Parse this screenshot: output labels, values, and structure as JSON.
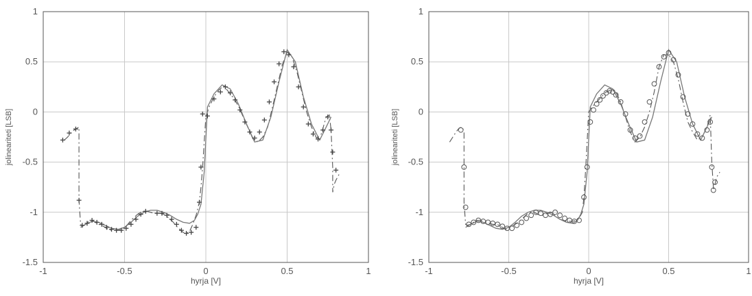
{
  "chart_data": [
    {
      "type": "line",
      "title": "",
      "xlabel": "hyrja  [V]",
      "ylabel": "jolineariteti  [LSB]",
      "xlim": [
        -1,
        1
      ],
      "ylim": [
        -1.5,
        1
      ],
      "xticks": [
        -1,
        -0.5,
        0,
        0.5,
        1
      ],
      "yticks": [
        -1.5,
        -1,
        -0.5,
        0,
        0.5,
        1
      ],
      "xtick_labels": [
        "-1",
        "-0.5",
        "0",
        "0.5",
        "1"
      ],
      "ytick_labels": [
        "-1.5",
        "-1",
        "-0.5",
        "0",
        "0.5",
        "1"
      ],
      "grid": true,
      "marker": "plus",
      "series": [
        {
          "style": "dash-dot",
          "x": [
            -0.87,
            -0.85,
            -0.83,
            -0.81,
            -0.79,
            -0.78,
            -0.78,
            -0.77,
            -0.76,
            -0.74,
            -0.72,
            -0.7,
            -0.68,
            -0.66,
            -0.64,
            -0.62,
            -0.6,
            -0.58,
            -0.56,
            -0.54,
            -0.52,
            -0.5,
            -0.48,
            -0.46,
            -0.44,
            -0.42,
            -0.4,
            -0.38,
            -0.36,
            -0.34,
            -0.32,
            -0.3,
            -0.28,
            -0.26,
            -0.24,
            -0.22,
            -0.2,
            -0.18,
            -0.16,
            -0.14,
            -0.12,
            -0.1,
            -0.08,
            -0.06,
            -0.04,
            -0.03,
            -0.02,
            -0.01,
            0.0,
            0.02,
            0.05,
            0.08,
            0.11,
            0.14,
            0.17,
            0.2,
            0.23,
            0.26,
            0.29,
            0.32,
            0.35,
            0.38,
            0.41,
            0.44,
            0.47,
            0.5,
            0.53,
            0.56,
            0.59,
            0.62,
            0.65,
            0.68,
            0.71,
            0.74,
            0.76,
            0.77,
            0.78,
            0.78,
            0.79,
            0.8,
            0.82
          ],
          "y": [
            -0.28,
            -0.25,
            -0.21,
            -0.18,
            -0.16,
            -0.15,
            -0.88,
            -1.12,
            -1.14,
            -1.12,
            -1.09,
            -1.08,
            -1.1,
            -1.12,
            -1.13,
            -1.15,
            -1.17,
            -1.18,
            -1.18,
            -1.18,
            -1.17,
            -1.15,
            -1.12,
            -1.08,
            -1.05,
            -1.02,
            -1.0,
            -0.99,
            -0.99,
            -1.0,
            -1.01,
            -1.01,
            -1.01,
            -1.02,
            -1.04,
            -1.07,
            -1.1,
            -1.14,
            -1.17,
            -1.2,
            -1.21,
            -1.19,
            -1.12,
            -1.03,
            -0.9,
            -0.75,
            -0.55,
            -0.3,
            -0.05,
            0.05,
            0.15,
            0.22,
            0.26,
            0.2,
            0.14,
            0.06,
            -0.05,
            -0.16,
            -0.27,
            -0.3,
            -0.25,
            -0.15,
            0.05,
            0.26,
            0.47,
            0.6,
            0.55,
            0.4,
            0.2,
            0.0,
            -0.15,
            -0.26,
            -0.22,
            -0.05,
            -0.03,
            -0.18,
            -0.55,
            -0.8,
            -0.72,
            -0.68,
            -0.62
          ]
        },
        {
          "style": "solid",
          "x": [
            -0.77,
            -0.74,
            -0.7,
            -0.66,
            -0.62,
            -0.58,
            -0.54,
            -0.5,
            -0.46,
            -0.42,
            -0.38,
            -0.34,
            -0.3,
            -0.26,
            -0.22,
            -0.18,
            -0.14,
            -0.1,
            -0.07,
            -0.05,
            -0.03,
            -0.01,
            0.01,
            0.05,
            0.1,
            0.15,
            0.2,
            0.25,
            0.3,
            0.35,
            0.4,
            0.45,
            0.5,
            0.55,
            0.6,
            0.65,
            0.7,
            0.74,
            0.77
          ],
          "y": [
            -1.15,
            -1.12,
            -1.09,
            -1.1,
            -1.13,
            -1.16,
            -1.17,
            -1.15,
            -1.1,
            -1.04,
            -1.0,
            -0.98,
            -0.98,
            -1.0,
            -1.03,
            -1.07,
            -1.1,
            -1.11,
            -1.08,
            -1.02,
            -0.92,
            -0.6,
            0.05,
            0.18,
            0.27,
            0.23,
            0.08,
            -0.12,
            -0.3,
            -0.28,
            -0.05,
            0.3,
            0.62,
            0.5,
            0.15,
            -0.12,
            -0.28,
            -0.15,
            -0.05
          ]
        }
      ],
      "markers": {
        "x": [
          -0.88,
          -0.84,
          -0.8,
          -0.78,
          -0.76,
          -0.73,
          -0.7,
          -0.67,
          -0.64,
          -0.61,
          -0.58,
          -0.55,
          -0.52,
          -0.49,
          -0.46,
          -0.43,
          -0.4,
          -0.37,
          -0.3,
          -0.27,
          -0.24,
          -0.21,
          -0.18,
          -0.15,
          -0.12,
          -0.09,
          -0.06,
          -0.04,
          -0.03,
          -0.02,
          0.01,
          0.05,
          0.09,
          0.12,
          0.15,
          0.18,
          0.21,
          0.24,
          0.27,
          0.3,
          0.33,
          0.36,
          0.39,
          0.42,
          0.45,
          0.48,
          0.51,
          0.54,
          0.57,
          0.6,
          0.63,
          0.66,
          0.69,
          0.72,
          0.75,
          0.77,
          0.78,
          0.8
        ],
        "y": [
          -0.28,
          -0.21,
          -0.17,
          -0.88,
          -1.13,
          -1.11,
          -1.08,
          -1.1,
          -1.12,
          -1.15,
          -1.17,
          -1.18,
          -1.18,
          -1.16,
          -1.12,
          -1.07,
          -1.02,
          -0.99,
          -1.01,
          -1.01,
          -1.03,
          -1.07,
          -1.12,
          -1.18,
          -1.21,
          -1.2,
          -1.15,
          -0.9,
          -0.55,
          -0.02,
          -0.04,
          0.13,
          0.2,
          0.25,
          0.19,
          0.12,
          0.02,
          -0.1,
          -0.2,
          -0.26,
          -0.2,
          -0.08,
          0.1,
          0.3,
          0.48,
          0.6,
          0.57,
          0.45,
          0.25,
          0.05,
          -0.12,
          -0.22,
          -0.27,
          -0.18,
          -0.05,
          -0.18,
          -0.4,
          -0.58
        ]
      }
    },
    {
      "type": "line",
      "title": "",
      "xlabel": "hyrja  [V]",
      "ylabel": "jolineariteti  [LSB]",
      "xlim": [
        -1,
        1
      ],
      "ylim": [
        -1.5,
        1
      ],
      "xticks": [
        -1,
        -0.5,
        0,
        0.5,
        1
      ],
      "yticks": [
        -1.5,
        -1,
        -0.5,
        0,
        0.5,
        1
      ],
      "xtick_labels": [
        "-1",
        "-0.5",
        "0",
        "0.5",
        "1"
      ],
      "ytick_labels": [
        "-1.5",
        "-1",
        "-0.5",
        "0",
        "0.5",
        "1"
      ],
      "grid": true,
      "marker": "circle",
      "series": [
        {
          "style": "dash-dot",
          "x": [
            -0.87,
            -0.85,
            -0.83,
            -0.81,
            -0.79,
            -0.78,
            -0.78,
            -0.77,
            -0.76,
            -0.74,
            -0.72,
            -0.7,
            -0.68,
            -0.66,
            -0.64,
            -0.62,
            -0.6,
            -0.58,
            -0.56,
            -0.54,
            -0.52,
            -0.5,
            -0.48,
            -0.46,
            -0.44,
            -0.42,
            -0.4,
            -0.38,
            -0.36,
            -0.34,
            -0.32,
            -0.3,
            -0.28,
            -0.26,
            -0.24,
            -0.22,
            -0.2,
            -0.18,
            -0.16,
            -0.14,
            -0.12,
            -0.1,
            -0.08,
            -0.06,
            -0.04,
            -0.03,
            -0.02,
            -0.01,
            0.0,
            0.02,
            0.05,
            0.08,
            0.11,
            0.14,
            0.17,
            0.2,
            0.23,
            0.26,
            0.29,
            0.32,
            0.35,
            0.38,
            0.41,
            0.44,
            0.47,
            0.5,
            0.53,
            0.56,
            0.59,
            0.62,
            0.65,
            0.68,
            0.71,
            0.74,
            0.76,
            0.77,
            0.78,
            0.78,
            0.79,
            0.8,
            0.82
          ],
          "y": [
            -0.3,
            -0.25,
            -0.2,
            -0.16,
            -0.15,
            -0.2,
            -0.9,
            -1.12,
            -1.13,
            -1.12,
            -1.1,
            -1.08,
            -1.08,
            -1.09,
            -1.1,
            -1.11,
            -1.12,
            -1.12,
            -1.13,
            -1.15,
            -1.17,
            -1.16,
            -1.14,
            -1.12,
            -1.1,
            -1.07,
            -1.04,
            -1.01,
            -1.0,
            -1.0,
            -1.02,
            -1.03,
            -1.03,
            -1.01,
            -1.0,
            -1.02,
            -1.05,
            -1.07,
            -1.08,
            -1.09,
            -1.09,
            -1.09,
            -1.08,
            -1.06,
            -1.0,
            -0.85,
            -0.6,
            -0.3,
            0.0,
            0.05,
            0.1,
            0.15,
            0.2,
            0.22,
            0.2,
            0.1,
            -0.05,
            -0.2,
            -0.3,
            -0.25,
            -0.15,
            0.0,
            0.2,
            0.45,
            0.57,
            0.57,
            0.5,
            0.33,
            0.1,
            -0.1,
            -0.2,
            -0.28,
            -0.25,
            -0.15,
            -0.03,
            -0.5,
            -0.75,
            -0.78,
            -0.72,
            -0.65,
            -0.6
          ]
        },
        {
          "style": "solid",
          "x": [
            -0.77,
            -0.74,
            -0.7,
            -0.66,
            -0.62,
            -0.58,
            -0.54,
            -0.5,
            -0.46,
            -0.42,
            -0.38,
            -0.34,
            -0.3,
            -0.26,
            -0.22,
            -0.18,
            -0.14,
            -0.1,
            -0.07,
            -0.05,
            -0.03,
            -0.01,
            0.01,
            0.05,
            0.1,
            0.15,
            0.2,
            0.25,
            0.3,
            0.35,
            0.4,
            0.45,
            0.5,
            0.55,
            0.6,
            0.65,
            0.7,
            0.74,
            0.77
          ],
          "y": [
            -1.15,
            -1.12,
            -1.09,
            -1.1,
            -1.13,
            -1.16,
            -1.17,
            -1.15,
            -1.1,
            -1.04,
            -1.0,
            -0.98,
            -0.98,
            -1.0,
            -1.03,
            -1.07,
            -1.1,
            -1.11,
            -1.08,
            -1.02,
            -0.92,
            -0.6,
            0.05,
            0.18,
            0.27,
            0.23,
            0.08,
            -0.12,
            -0.3,
            -0.28,
            -0.05,
            0.3,
            0.62,
            0.5,
            0.15,
            -0.12,
            -0.28,
            -0.15,
            -0.05
          ]
        }
      ],
      "markers": {
        "x": [
          -0.8,
          -0.78,
          -0.77,
          -0.75,
          -0.72,
          -0.69,
          -0.66,
          -0.63,
          -0.6,
          -0.57,
          -0.54,
          -0.51,
          -0.48,
          -0.45,
          -0.42,
          -0.39,
          -0.36,
          -0.33,
          -0.3,
          -0.27,
          -0.24,
          -0.21,
          -0.18,
          -0.15,
          -0.12,
          -0.09,
          -0.06,
          -0.03,
          -0.01,
          0.01,
          0.03,
          0.05,
          0.07,
          0.09,
          0.11,
          0.13,
          0.15,
          0.17,
          0.2,
          0.23,
          0.26,
          0.29,
          0.32,
          0.35,
          0.38,
          0.41,
          0.44,
          0.47,
          0.5,
          0.53,
          0.56,
          0.59,
          0.62,
          0.65,
          0.68,
          0.71,
          0.74,
          0.76,
          0.77,
          0.78,
          0.79
        ],
        "y": [
          -0.18,
          -0.55,
          -0.95,
          -1.12,
          -1.1,
          -1.08,
          -1.09,
          -1.1,
          -1.11,
          -1.12,
          -1.14,
          -1.16,
          -1.16,
          -1.13,
          -1.1,
          -1.06,
          -1.03,
          -1.0,
          -1.01,
          -1.03,
          -1.02,
          -1.0,
          -1.03,
          -1.06,
          -1.08,
          -1.09,
          -1.08,
          -0.85,
          -0.55,
          -0.1,
          0.02,
          0.08,
          0.12,
          0.16,
          0.19,
          0.21,
          0.2,
          0.17,
          0.1,
          -0.02,
          -0.18,
          -0.26,
          -0.24,
          -0.1,
          0.1,
          0.28,
          0.45,
          0.55,
          0.59,
          0.52,
          0.37,
          0.15,
          -0.02,
          -0.12,
          -0.22,
          -0.26,
          -0.18,
          -0.1,
          -0.55,
          -0.78,
          -0.7
        ]
      }
    }
  ]
}
